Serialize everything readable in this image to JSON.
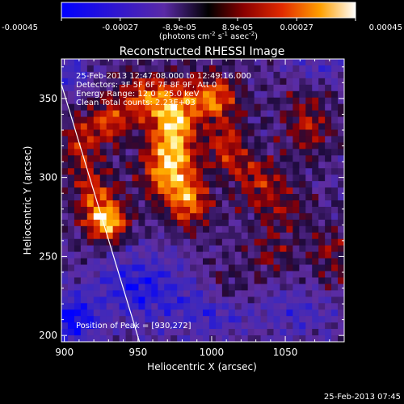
{
  "chart_data": {
    "type": "heatmap",
    "title": "Reconstructed RHESSI Image",
    "xlabel": "Heliocentric X (arcsec)",
    "ylabel": "Heliocentric Y (arcsec)",
    "xlim": [
      898,
      1090
    ],
    "ylim": [
      196,
      375
    ],
    "x_ticks": [
      900,
      950,
      1000,
      1050
    ],
    "y_ticks": [
      200,
      250,
      300,
      350
    ],
    "x_tick_labels": [
      "900",
      "950",
      "1000",
      "1050"
    ],
    "y_tick_labels": [
      "200",
      "250",
      "300",
      "350"
    ],
    "colorbar": {
      "ticks": [
        -0.00045,
        -0.00027,
        -8.9e-05,
        8.9e-05,
        0.00027,
        0.00045
      ],
      "tick_labels": [
        "-0.00045",
        "-0.00027",
        "-8.9e-05",
        "8.9e-05",
        "0.00027",
        "0.00045"
      ],
      "unit_label_parts": [
        "(photons cm",
        "-2",
        " s",
        "-1",
        " asec",
        "-2",
        ")"
      ],
      "range": [
        -0.00045,
        0.00045
      ]
    },
    "info_lines": [
      "25-Feb-2013 12:47:08.000 to 12:49:16.000",
      "Detectors: 3F 5F 6F 7F 8F 9F, Att 0",
      "Energy Range: 12.0 - 25.0 keV",
      "Clean    Total counts: 2.23E+03"
    ],
    "peak_label": "Position of Peak = [930,272]",
    "peak": [
      930,
      272
    ],
    "limb_line": [
      [
        898,
        359
      ],
      [
        951,
        196
      ]
    ],
    "blobs": [
      {
        "x": 930,
        "y": 272,
        "amp": 1.0,
        "sx": 9,
        "sy": 9
      },
      {
        "x": 920,
        "y": 290,
        "amp": 0.55,
        "sx": 10,
        "sy": 14
      },
      {
        "x": 970,
        "y": 305,
        "amp": 0.9,
        "sx": 12,
        "sy": 14
      },
      {
        "x": 985,
        "y": 285,
        "amp": 0.7,
        "sx": 10,
        "sy": 12
      },
      {
        "x": 975,
        "y": 335,
        "amp": 0.95,
        "sx": 10,
        "sy": 16
      },
      {
        "x": 955,
        "y": 350,
        "amp": 0.7,
        "sx": 12,
        "sy": 10
      },
      {
        "x": 1000,
        "y": 350,
        "amp": 0.8,
        "sx": 12,
        "sy": 10
      },
      {
        "x": 1010,
        "y": 320,
        "amp": 0.55,
        "sx": 10,
        "sy": 12
      },
      {
        "x": 930,
        "y": 335,
        "amp": 0.6,
        "sx": 10,
        "sy": 10
      },
      {
        "x": 910,
        "y": 320,
        "amp": 0.5,
        "sx": 8,
        "sy": 12
      },
      {
        "x": 1030,
        "y": 300,
        "amp": 0.45,
        "sx": 12,
        "sy": 10
      },
      {
        "x": 1065,
        "y": 335,
        "amp": 0.45,
        "sx": 12,
        "sy": 14
      },
      {
        "x": 1045,
        "y": 280,
        "amp": 0.35,
        "sx": 14,
        "sy": 12
      },
      {
        "x": 1080,
        "y": 250,
        "amp": 0.35,
        "sx": 10,
        "sy": 14
      },
      {
        "x": 1040,
        "y": 250,
        "amp": 0.3,
        "sx": 10,
        "sy": 10
      },
      {
        "x": 1010,
        "y": 230,
        "amp": 0.25,
        "sx": 12,
        "sy": 10
      },
      {
        "x": 950,
        "y": 230,
        "amp": -0.55,
        "sx": 22,
        "sy": 16
      },
      {
        "x": 905,
        "y": 210,
        "amp": -0.7,
        "sx": 12,
        "sy": 12
      },
      {
        "x": 1000,
        "y": 215,
        "amp": -0.4,
        "sx": 20,
        "sy": 12
      },
      {
        "x": 1060,
        "y": 215,
        "amp": -0.35,
        "sx": 18,
        "sy": 12
      },
      {
        "x": 905,
        "y": 365,
        "amp": -0.45,
        "sx": 8,
        "sy": 8
      },
      {
        "x": 1070,
        "y": 370,
        "amp": -0.3,
        "sx": 14,
        "sy": 8
      }
    ]
  },
  "footer": {
    "timestamp": "25-Feb-2013 07:45"
  }
}
